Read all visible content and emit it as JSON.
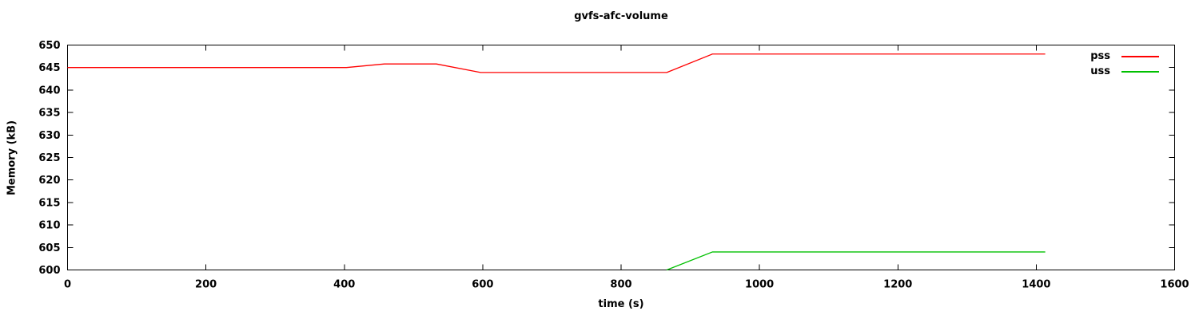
{
  "chart_data": {
    "type": "line",
    "title": "gvfs-afc-volume",
    "xlabel": "time (s)",
    "ylabel": "Memory (kB)",
    "xlim": [
      0,
      1600
    ],
    "ylim": [
      600,
      650
    ],
    "xticks": [
      0,
      200,
      400,
      600,
      800,
      1000,
      1200,
      1400,
      1600
    ],
    "yticks": [
      600,
      605,
      610,
      615,
      620,
      625,
      630,
      635,
      640,
      645,
      650
    ],
    "grid": false,
    "legend_position": "top-right-inside",
    "series": [
      {
        "name": "pss",
        "color": "#ff0000",
        "points": [
          [
            0,
            645
          ],
          [
            403,
            645
          ],
          [
            458,
            645.8
          ],
          [
            533,
            645.8
          ],
          [
            597,
            643.9
          ],
          [
            866,
            643.9
          ],
          [
            932,
            648
          ],
          [
            1413,
            648
          ]
        ]
      },
      {
        "name": "uss",
        "color": "#00c000",
        "points": [
          [
            866,
            600
          ],
          [
            932,
            604
          ],
          [
            1413,
            604
          ]
        ]
      }
    ]
  },
  "colors": {
    "axis": "#000000",
    "background": "#ffffff",
    "pss": "#ff0000",
    "uss": "#00c000"
  }
}
